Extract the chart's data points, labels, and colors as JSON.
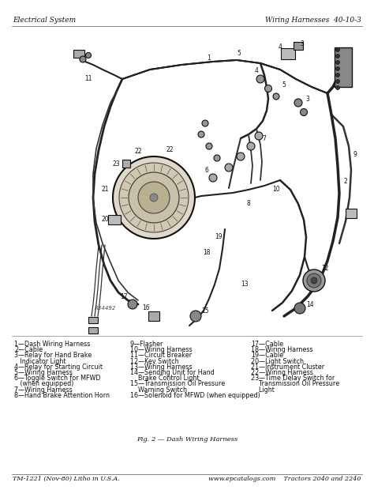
{
  "page_bg": "#ffffff",
  "diagram_bg": "#ffffff",
  "header_left": "Electrical System",
  "header_right": "Wiring Harnesses  40-10-3",
  "footer_left": "TM-1221 (Nov-80) Litho in U.S.A.",
  "footer_right": "www.epcatalogs.com    Tractors 2040 and 2240",
  "figure_caption": "Fig. 2 — Dash Wiring Harness",
  "figure_ref": "R34492",
  "legend_col1": [
    "1—Dash Wiring Harness",
    "2—Cable",
    "3—Relay for Hand Brake",
    "   Indicator Light",
    "4—Relay for Starting Circuit",
    "5—Wiring Harness",
    "6—Toggle Switch for MFWD",
    "   (when equipped)",
    "7—Wiring Harness",
    "8—Hand Brake Attention Horn"
  ],
  "legend_col2": [
    "9—Flasher",
    "10—Wiring Harness",
    "11—Circuit Breaker",
    "12—Key Switch",
    "13—Wiring Harness",
    "14—Sending Unit for Hand",
    "    Brake Control Light",
    "15—Transmission Oil Pressure",
    "    Warning Switch",
    "16—Solenoid for MFWD (when equipped)"
  ],
  "legend_col3": [
    "17—Cable",
    "18—Wiring Harness",
    "19—Cable",
    "20—Light Switch",
    "21—Instrument Cluster",
    "22—Wiring Harness",
    "23—Time Delay Switch for",
    "    Transmission Oil Pressure",
    "    Light"
  ],
  "wire_color": "#1a1a1a",
  "text_color": "#111111",
  "header_fontsize": 6.5,
  "legend_fontsize": 5.8,
  "footer_fontsize": 5.8,
  "caption_fontsize": 6.0,
  "label_fontsize": 5.5
}
